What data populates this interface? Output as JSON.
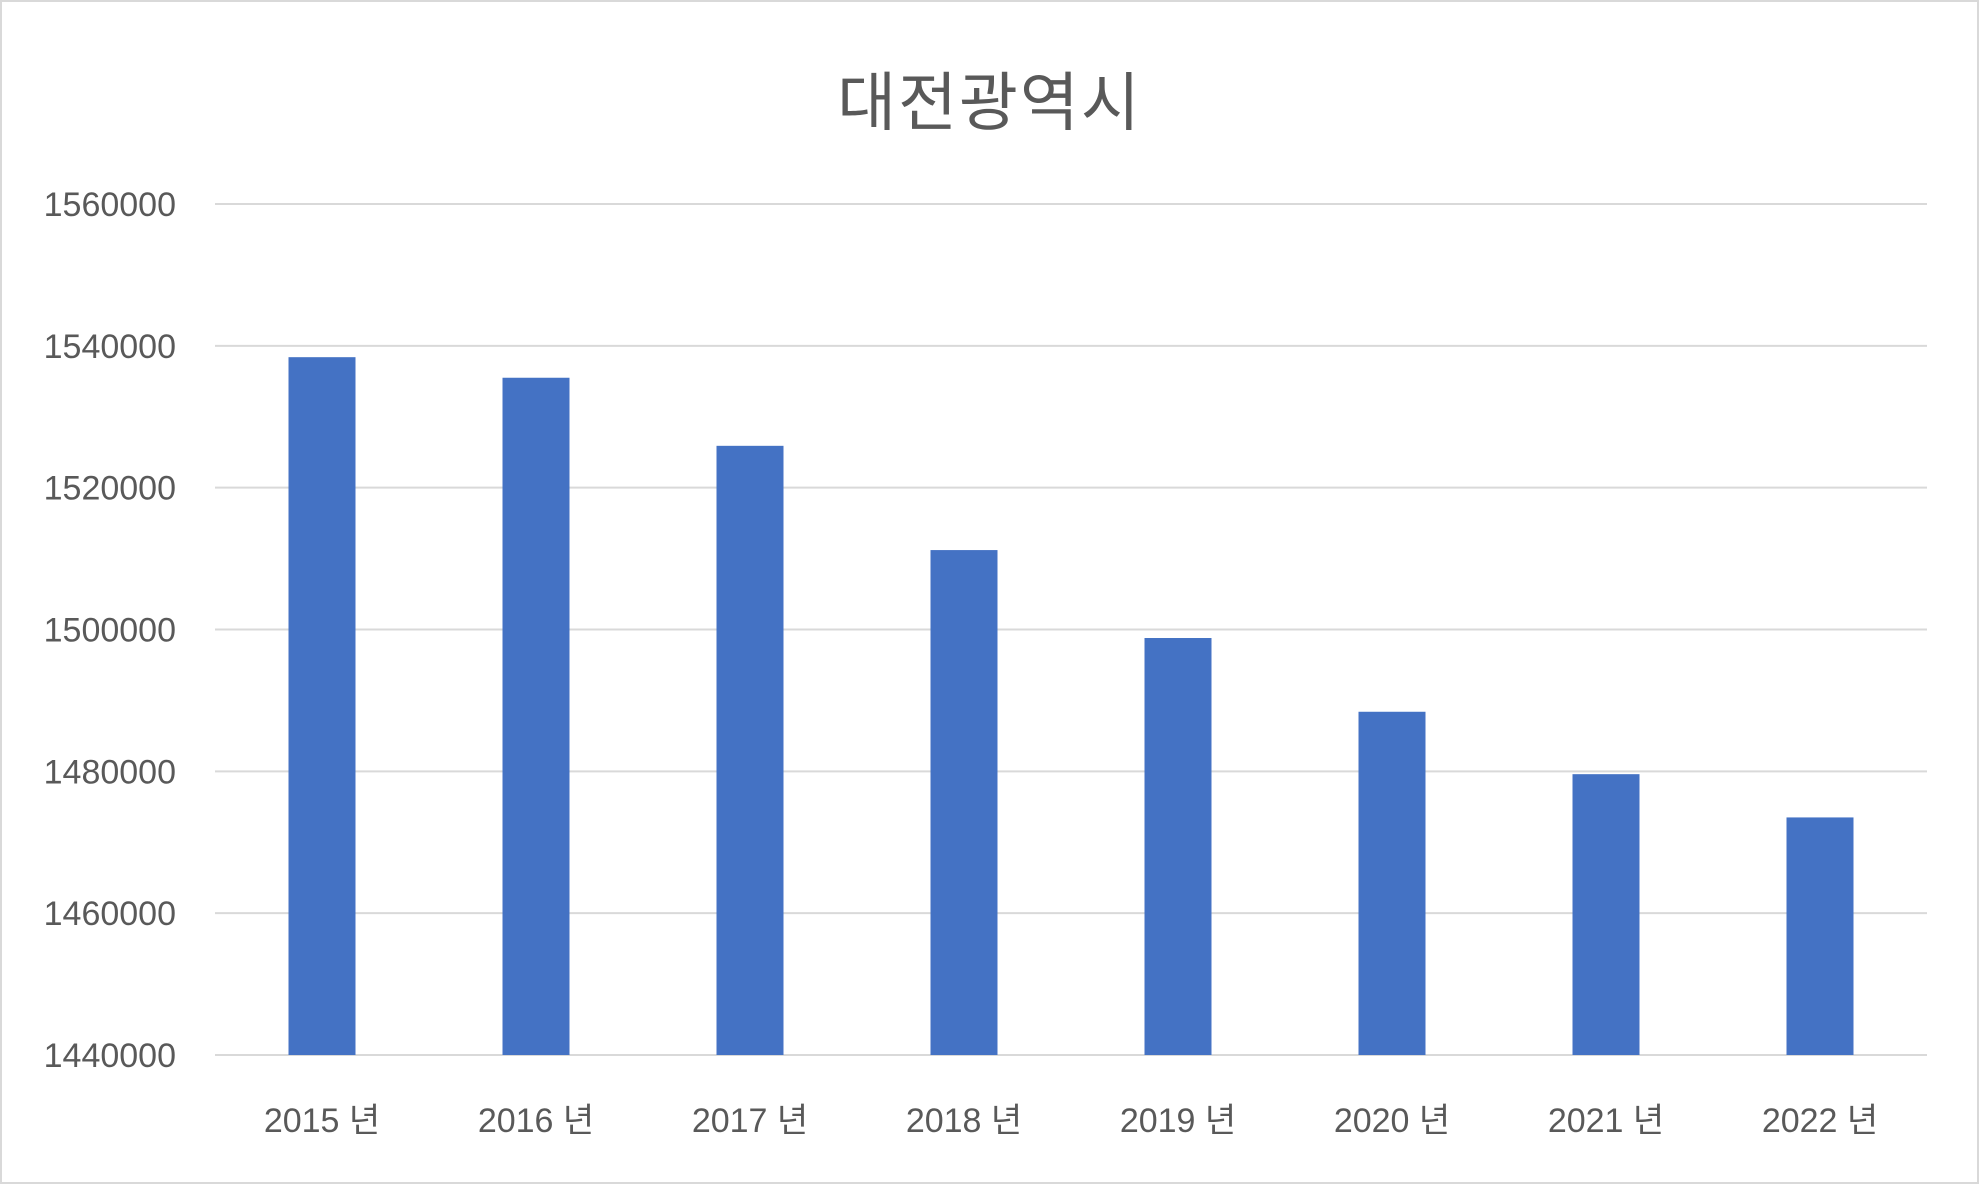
{
  "chart_data": {
    "type": "bar",
    "title": "대전광역시",
    "categories": [
      "2015 년",
      "2016 년",
      "2017 년",
      "2018 년",
      "2019 년",
      "2020 년",
      "2021 년",
      "2022 년"
    ],
    "series": [
      {
        "values": [
          1538400,
          1535500,
          1525900,
          1511200,
          1498800,
          1488400,
          1479600,
          1473500
        ]
      }
    ],
    "ylim": [
      1440000,
      1560000
    ],
    "yticks": [
      1440000,
      1460000,
      1480000,
      1500000,
      1520000,
      1540000,
      1560000
    ],
    "grid": true,
    "legend": "none",
    "colors": {
      "bar": "#4472C4",
      "grid": "#d9d9d9",
      "text": "#595959"
    }
  }
}
